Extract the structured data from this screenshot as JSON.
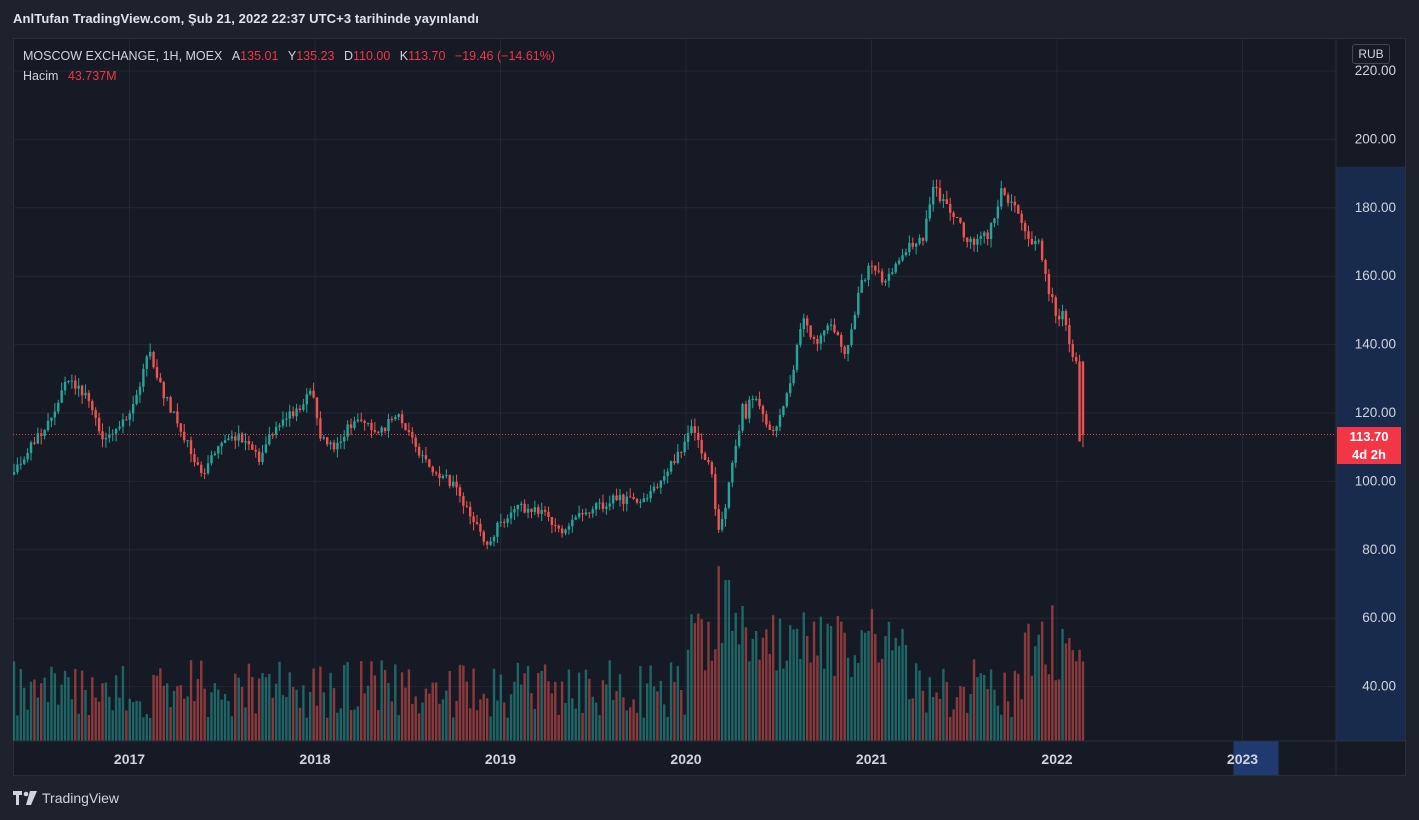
{
  "header": {
    "published_text": "AnlTufan TradingView.com, Şub 21, 2022 22:37 UTC+3 tarihinde yayınlandı"
  },
  "legend": {
    "symbol": "MOSCOW EXCHANGE, 1H, MOEX",
    "open_label": "A",
    "open_value": "135.01",
    "high_label": "Y",
    "high_value": "135.23",
    "low_label": "D",
    "low_value": "110.00",
    "close_label": "K",
    "close_value": "113.70",
    "change": "−19.46 (−14.61%)",
    "volume_label": "Hacim",
    "volume_value": "43.737M"
  },
  "price_scale": {
    "currency": "RUB",
    "last_price": "113.70",
    "countdown": "4d 2h"
  },
  "footer": {
    "brand": "TradingView"
  },
  "colors": {
    "up": "#26a69a",
    "down": "#ef5350",
    "price_line": "#f23645",
    "background": "#161a25",
    "grid": "#232733",
    "highlight": "#1e3a6e"
  },
  "chart_data": {
    "type": "candlestick",
    "x_axis": {
      "ticks": [
        "2017",
        "2018",
        "2019",
        "2020",
        "2021",
        "2022",
        "2023"
      ],
      "highlighted": "2023"
    },
    "y_axis": {
      "ticks": [
        "40.00",
        "60.00",
        "80.00",
        "100.00",
        "120.00",
        "140.00",
        "160.00",
        "180.00",
        "200.00",
        "220.00"
      ],
      "ylim": [
        24,
        224
      ]
    },
    "last_price": 113.7,
    "price_path": [
      [
        2016.38,
        102
      ],
      [
        2016.5,
        112
      ],
      [
        2016.6,
        118
      ],
      [
        2016.68,
        131
      ],
      [
        2016.78,
        125
      ],
      [
        2016.88,
        112
      ],
      [
        2017.0,
        118
      ],
      [
        2017.05,
        123
      ],
      [
        2017.12,
        138
      ],
      [
        2017.2,
        126
      ],
      [
        2017.3,
        115
      ],
      [
        2017.4,
        102
      ],
      [
        2017.5,
        110
      ],
      [
        2017.6,
        113
      ],
      [
        2017.72,
        107
      ],
      [
        2017.82,
        117
      ],
      [
        2017.92,
        121
      ],
      [
        2018.0,
        126
      ],
      [
        2018.05,
        113
      ],
      [
        2018.12,
        110
      ],
      [
        2018.2,
        116
      ],
      [
        2018.3,
        119
      ],
      [
        2018.35,
        113
      ],
      [
        2018.45,
        120
      ],
      [
        2018.55,
        111
      ],
      [
        2018.65,
        104
      ],
      [
        2018.78,
        98
      ],
      [
        2018.88,
        88
      ],
      [
        2018.95,
        80
      ],
      [
        2019.0,
        87
      ],
      [
        2019.1,
        93
      ],
      [
        2019.25,
        91
      ],
      [
        2019.35,
        85
      ],
      [
        2019.5,
        92
      ],
      [
        2019.65,
        95
      ],
      [
        2019.78,
        93
      ],
      [
        2019.92,
        103
      ],
      [
        2020.0,
        110
      ],
      [
        2020.05,
        115
      ],
      [
        2020.1,
        110
      ],
      [
        2020.15,
        104
      ],
      [
        2020.2,
        82
      ],
      [
        2020.25,
        100
      ],
      [
        2020.32,
        120
      ],
      [
        2020.4,
        124
      ],
      [
        2020.45,
        117
      ],
      [
        2020.5,
        115
      ],
      [
        2020.58,
        128
      ],
      [
        2020.65,
        148
      ],
      [
        2020.72,
        140
      ],
      [
        2020.8,
        147
      ],
      [
        2020.88,
        137
      ],
      [
        2020.95,
        155
      ],
      [
        2021.0,
        163
      ],
      [
        2021.1,
        158
      ],
      [
        2021.2,
        168
      ],
      [
        2021.3,
        172
      ],
      [
        2021.35,
        186
      ],
      [
        2021.45,
        178
      ],
      [
        2021.55,
        170
      ],
      [
        2021.65,
        172
      ],
      [
        2021.72,
        185
      ],
      [
        2021.8,
        180
      ],
      [
        2021.85,
        172
      ],
      [
        2021.92,
        168
      ],
      [
        2022.0,
        150
      ],
      [
        2022.06,
        147
      ],
      [
        2022.1,
        137
      ],
      [
        2022.13,
        135
      ],
      [
        2022.14,
        113.7
      ]
    ],
    "volume_spikes": [
      [
        2020.18,
        76
      ],
      [
        2020.22,
        70
      ],
      [
        2021.98,
        59
      ]
    ]
  }
}
